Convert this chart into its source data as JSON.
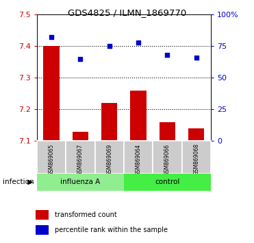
{
  "title": "GDS4825 / ILMN_1869770",
  "samples": [
    "GSM869065",
    "GSM869067",
    "GSM869069",
    "GSM869064",
    "GSM869066",
    "GSM869068"
  ],
  "transformed_counts": [
    7.4,
    7.13,
    7.22,
    7.26,
    7.16,
    7.14
  ],
  "percentile_ranks": [
    82,
    65,
    75,
    78,
    68,
    66
  ],
  "bar_color": "#CC0000",
  "dot_color": "#0000CC",
  "ylim_left": [
    7.1,
    7.5
  ],
  "ylim_right": [
    0,
    100
  ],
  "yticks_left": [
    7.1,
    7.2,
    7.3,
    7.4,
    7.5
  ],
  "yticks_right": [
    0,
    25,
    50,
    75,
    100
  ],
  "yticklabels_right": [
    "0",
    "25",
    "50",
    "75",
    "100%"
  ],
  "grid_lines": [
    7.2,
    7.3,
    7.4
  ],
  "xlabel_infection": "infection",
  "legend_bar": "transformed count",
  "legend_dot": "percentile rank within the sample",
  "influenza_color_light": "#b8f0b8",
  "influenza_color": "#90EE90",
  "control_color": "#44ee44",
  "sample_box_color": "#cccccc",
  "sample_box_edge": "#aaaaaa"
}
